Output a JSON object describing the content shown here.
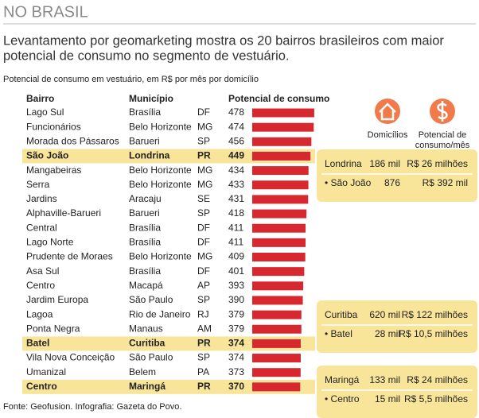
{
  "chart_data": {
    "type": "bar",
    "title": "NO BRASIL",
    "subtitle": [
      "Levantamento por geomarketing mostra os 20 bairros brasileiros com maior",
      "potencial de consumo no segmento de vestuário."
    ],
    "caption": "Potencial de consumo em vestuário, em R$ por mês por domicílio",
    "headers": [
      "Bairro",
      "Município",
      "Potencial de consumo"
    ],
    "categories": [
      "Lago Sul",
      "Funcionários",
      "Morada dos Pássaros",
      "São João",
      "Mangabeiras",
      "Serra",
      "Jardins",
      "Alphaville-Barueri",
      "Central",
      "Lago Norte",
      "Prudente de Moraes",
      "Asa Sul",
      "Centro",
      "Jardim Europa",
      "Lagoa",
      "Ponta Negra",
      "Batel",
      "Vila Nova Conceição",
      "Umanizal",
      "Centro"
    ],
    "municipios": [
      "Brasília",
      "Belo Horizonte",
      "Barueri",
      "Londrina",
      "Belo Horizonte",
      "Belo Horizonte",
      "Aracaju",
      "Barueri",
      "Brasília",
      "Brasília",
      "Belo Horizonte",
      "Brasília",
      "Macapá",
      "São Paulo",
      "Rio de Janeiro",
      "Manaus",
      "Curitiba",
      "São Paulo",
      "Belem",
      "Maringá"
    ],
    "ufs": [
      "DF",
      "MG",
      "SP",
      "PR",
      "MG",
      "MG",
      "SE",
      "SP",
      "DF",
      "DF",
      "MG",
      "DF",
      "AP",
      "SP",
      "RJ",
      "AM",
      "PR",
      "SP",
      "PA",
      "PR"
    ],
    "values": [
      478,
      474,
      456,
      449,
      434,
      433,
      431,
      418,
      411,
      411,
      409,
      401,
      393,
      390,
      379,
      379,
      374,
      374,
      373,
      370
    ],
    "highlighted": [
      false,
      false,
      false,
      true,
      false,
      false,
      false,
      false,
      false,
      false,
      false,
      false,
      false,
      false,
      false,
      false,
      true,
      false,
      false,
      true
    ],
    "color": "#d7282f",
    "icon_labels": [
      [
        "Domicílios"
      ],
      [
        "Potencial de",
        "consumo/mês"
      ]
    ],
    "boxes": [
      [
        [
          "Londrina",
          "186 mil",
          "R$ 26 milhões"
        ],
        [
          "• São João",
          "876",
          "R$ 392 mil"
        ]
      ],
      [
        [
          "Curitiba",
          "620 mil",
          "R$ 122 milhões"
        ],
        [
          "• Batel",
          "28 mil",
          "R$ 10,5 milhões"
        ]
      ],
      [
        [
          "Maringá",
          "133 mil",
          "R$ 24 milhões"
        ],
        [
          "• Centro",
          "15 mil",
          "R$ 5,5 milhões"
        ]
      ]
    ],
    "source": "Fonte: Geofusion. Infografia: Gazeta do Povo."
  }
}
